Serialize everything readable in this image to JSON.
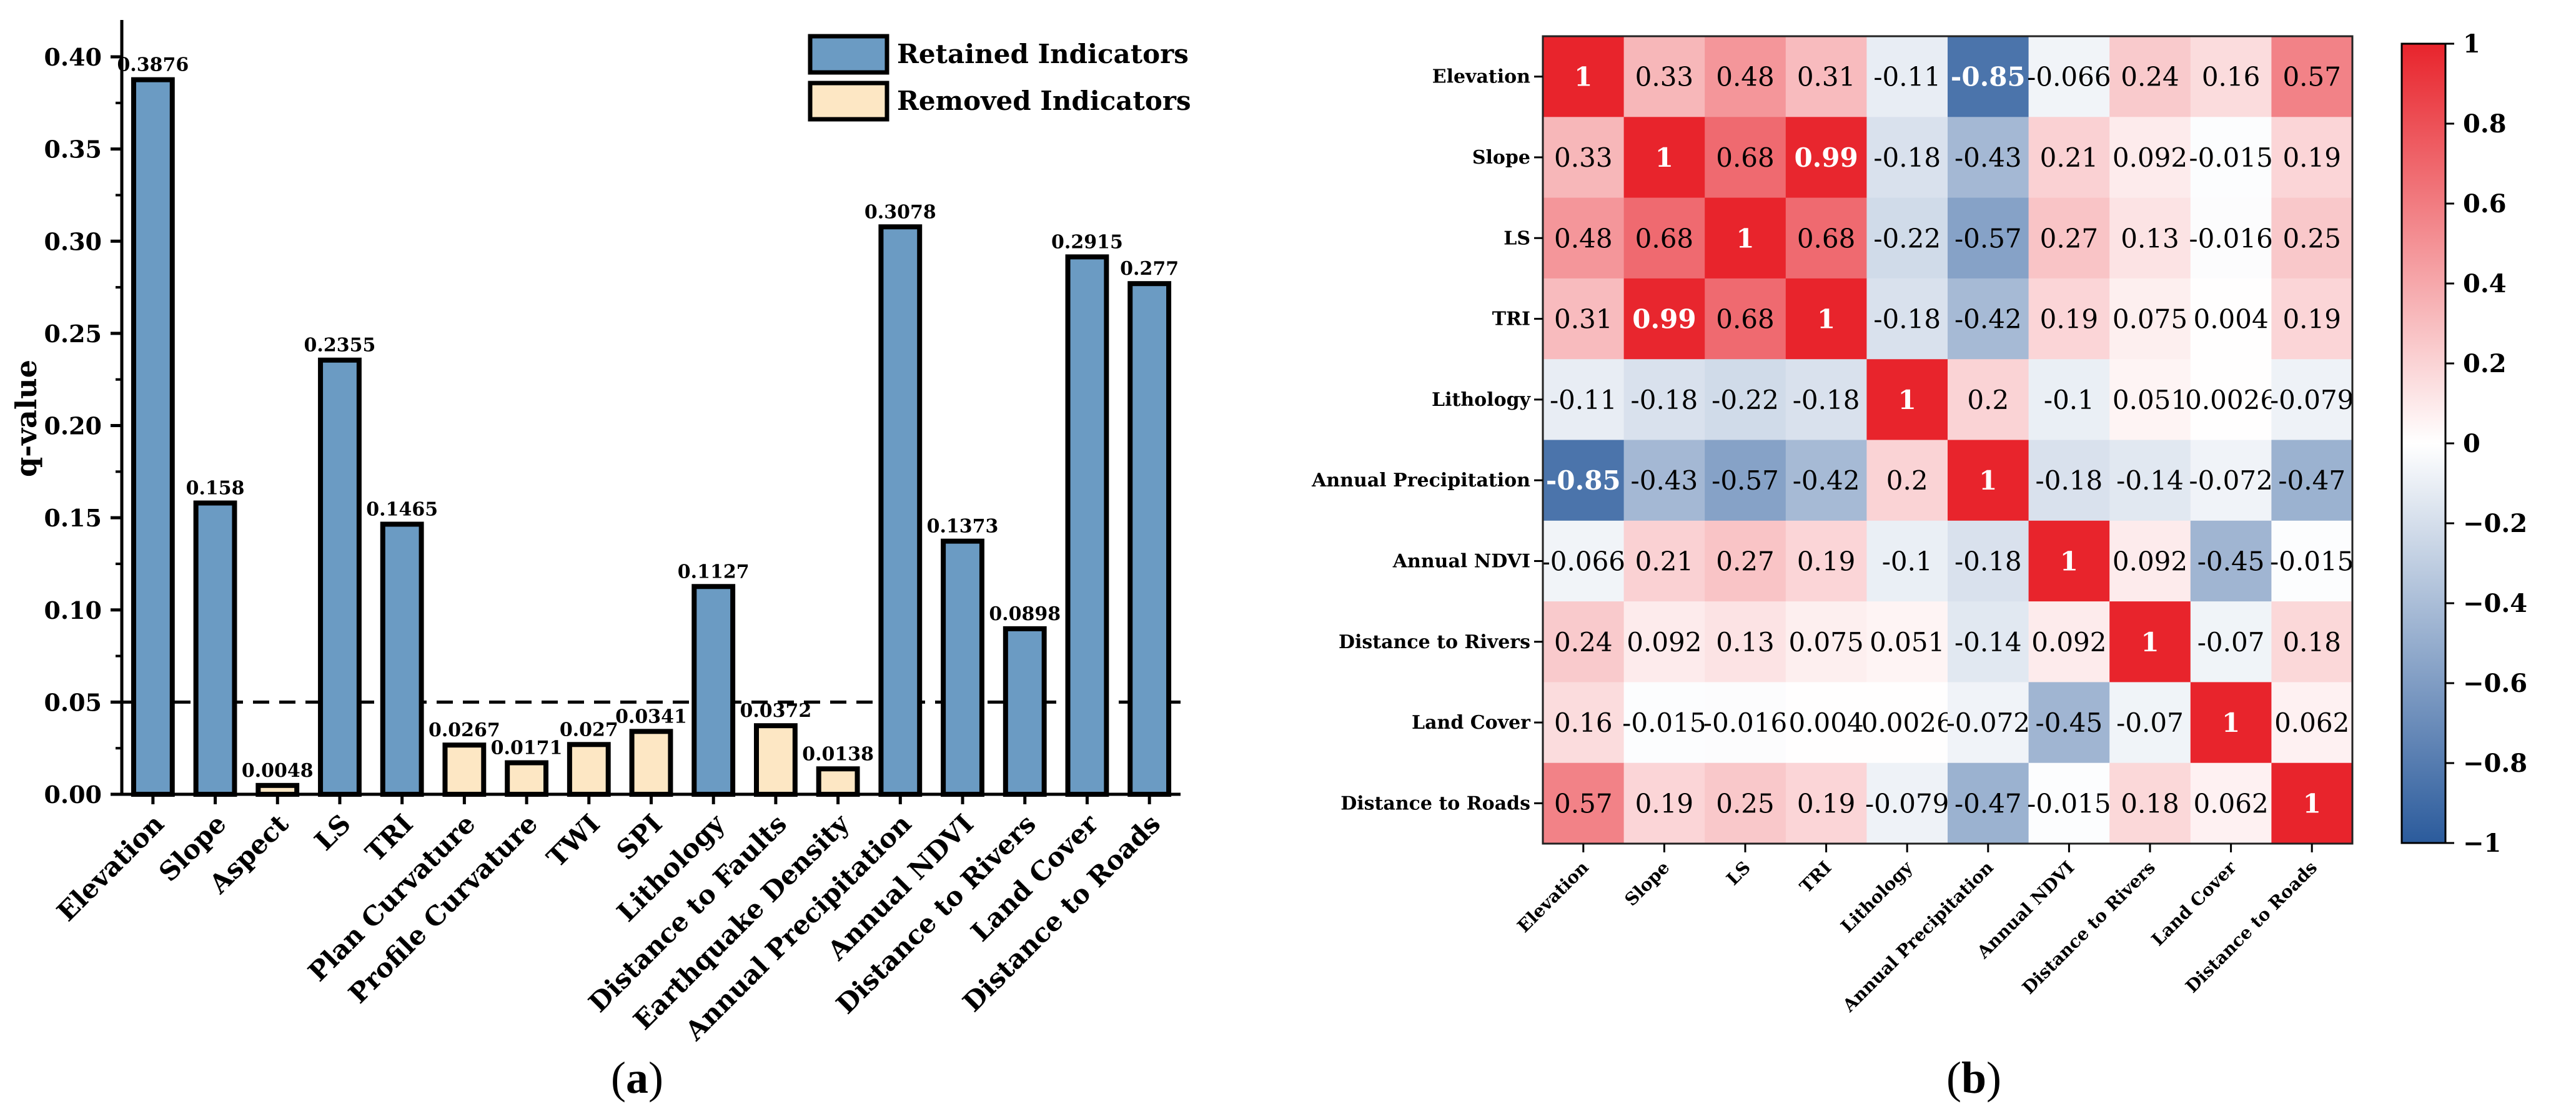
{
  "chart_data": [
    {
      "type": "bar",
      "panel_label": "a",
      "ylabel": "q-value",
      "ylim": [
        0,
        0.42
      ],
      "yticks": [
        "0.00",
        "0.05",
        "0.10",
        "0.15",
        "0.20",
        "0.25",
        "0.30",
        "0.35",
        "0.40"
      ],
      "threshold": 0.05,
      "categories": [
        "Elevation",
        "Slope",
        "Aspect",
        "LS",
        "TRI",
        "Plan Curvature",
        "Profile Curvature",
        "TWI",
        "SPI",
        "Lithology",
        "Distance to Faults",
        "Earthquake Density",
        "Annual Precipitation",
        "Annual NDVI",
        "Distance to Rivers",
        "Land Cover",
        "Distance to Roads"
      ],
      "values": [
        0.3876,
        0.158,
        0.0048,
        0.2355,
        0.1465,
        0.0267,
        0.0171,
        0.027,
        0.0341,
        0.1127,
        0.0372,
        0.0138,
        0.3078,
        0.1373,
        0.0898,
        0.2915,
        0.277
      ],
      "value_labels": [
        "0.3876",
        "0.158",
        "0.0048",
        "0.2355",
        "0.1465",
        "0.0267",
        "0.0171",
        "0.027",
        "0.0341",
        "0.1127",
        "0.0372",
        "0.0138",
        "0.3078",
        "0.1373",
        "0.0898",
        "0.2915",
        "0.277"
      ],
      "status": [
        "retained",
        "retained",
        "removed",
        "retained",
        "retained",
        "removed",
        "removed",
        "removed",
        "removed",
        "retained",
        "removed",
        "removed",
        "retained",
        "retained",
        "retained",
        "retained",
        "retained"
      ],
      "legend": [
        {
          "label": "Retained Indicators",
          "key": "retained",
          "color": "#6b9bc3"
        },
        {
          "label": "Removed Indicators",
          "key": "removed",
          "color": "#fde7c4"
        }
      ],
      "legend_position": "top-right"
    },
    {
      "type": "heatmap",
      "panel_label": "b",
      "labels": [
        "Elevation",
        "Slope",
        "LS",
        "TRI",
        "Lithology",
        "Annual Precipitation",
        "Annual NDVI",
        "Distance to Rivers",
        "Land Cover",
        "Distance to Roads"
      ],
      "cells": [
        [
          "1",
          "0.33",
          "0.48",
          "0.31",
          "-0.11",
          "-0.85",
          "-0.066",
          "0.24",
          "0.16",
          "0.57"
        ],
        [
          "0.33",
          "1",
          "0.68",
          "0.99",
          "-0.18",
          "-0.43",
          "0.21",
          "0.092",
          "-0.015",
          "0.19"
        ],
        [
          "0.48",
          "0.68",
          "1",
          "0.68",
          "-0.22",
          "-0.57",
          "0.27",
          "0.13",
          "-0.016",
          "0.25"
        ],
        [
          "0.31",
          "0.99",
          "0.68",
          "1",
          "-0.18",
          "-0.42",
          "0.19",
          "0.075",
          "0.004",
          "0.19"
        ],
        [
          "-0.11",
          "-0.18",
          "-0.22",
          "-0.18",
          "1",
          "0.2",
          "-0.1",
          "0.051",
          "0.0026",
          "-0.079"
        ],
        [
          "-0.85",
          "-0.43",
          "-0.57",
          "-0.42",
          "0.2",
          "1",
          "-0.18",
          "-0.14",
          "-0.072",
          "-0.47"
        ],
        [
          "-0.066",
          "0.21",
          "0.27",
          "0.19",
          "-0.1",
          "-0.18",
          "1",
          "0.092",
          "-0.45",
          "-0.015"
        ],
        [
          "0.24",
          "0.092",
          "0.13",
          "0.075",
          "0.051",
          "-0.14",
          "0.092",
          "1",
          "-0.07",
          "0.18"
        ],
        [
          "0.16",
          "-0.015",
          "-0.016",
          "0.004",
          "0.0026",
          "-0.072",
          "-0.45",
          "-0.07",
          "1",
          "0.062"
        ],
        [
          "0.57",
          "0.19",
          "0.25",
          "0.19",
          "-0.079",
          "-0.47",
          "-0.015",
          "0.18",
          "0.062",
          "1"
        ]
      ],
      "colorbar_range": [
        -1,
        1
      ],
      "colorbar_ticks": [
        "1",
        "0.8",
        "0.6",
        "0.4",
        "0.2",
        "0",
        "−0.2",
        "−0.4",
        "−0.6",
        "−0.8",
        "−1"
      ],
      "colormap": {
        "negative": "#2b5b9c",
        "zero": "#ffffff",
        "positive": "#e8242c"
      }
    }
  ]
}
